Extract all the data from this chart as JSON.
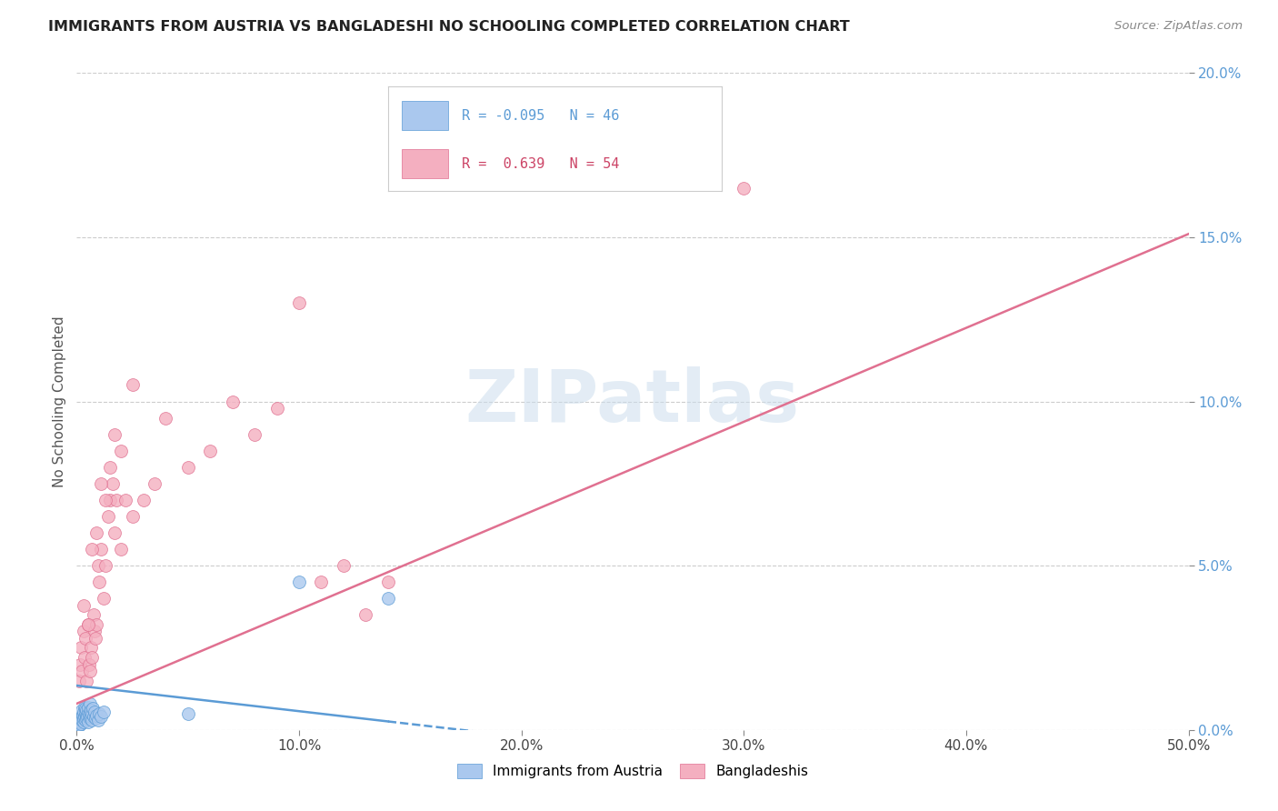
{
  "title": "IMMIGRANTS FROM AUSTRIA VS BANGLADESHI NO SCHOOLING COMPLETED CORRELATION CHART",
  "source": "Source: ZipAtlas.com",
  "ylabel": "No Schooling Completed",
  "legend_label_blue": "Immigrants from Austria",
  "legend_label_pink": "Bangladeshis",
  "R_blue": -0.095,
  "N_blue": 46,
  "R_pink": 0.639,
  "N_pink": 54,
  "xlim": [
    0,
    50
  ],
  "ylim": [
    0,
    20
  ],
  "xticks": [
    0,
    10,
    20,
    30,
    40,
    50
  ],
  "yticks": [
    0,
    5,
    10,
    15,
    20
  ],
  "xticklabels": [
    "0.0%",
    "10.0%",
    "20.0%",
    "30.0%",
    "40.0%",
    "50.0%"
  ],
  "yticklabels": [
    "0.0%",
    "5.0%",
    "10.0%",
    "15.0%",
    "20.0%"
  ],
  "blue_color": "#aac8ee",
  "blue_edge_color": "#5b9bd5",
  "pink_color": "#f4afc0",
  "pink_edge_color": "#e07090",
  "blue_trend_color": "#5b9bd5",
  "pink_trend_color": "#e07090",
  "watermark_color": "#ccdeed",
  "blue_x": [
    0.05,
    0.08,
    0.1,
    0.12,
    0.15,
    0.18,
    0.2,
    0.22,
    0.25,
    0.25,
    0.28,
    0.3,
    0.3,
    0.32,
    0.35,
    0.35,
    0.38,
    0.4,
    0.4,
    0.42,
    0.45,
    0.45,
    0.48,
    0.5,
    0.5,
    0.52,
    0.55,
    0.58,
    0.6,
    0.6,
    0.62,
    0.65,
    0.68,
    0.7,
    0.72,
    0.75,
    0.8,
    0.85,
    0.9,
    0.95,
    1.0,
    1.1,
    1.2,
    5.0,
    10.0,
    14.0
  ],
  "blue_y": [
    0.1,
    0.2,
    0.3,
    0.15,
    0.25,
    0.35,
    0.2,
    0.4,
    0.3,
    0.6,
    0.45,
    0.25,
    0.55,
    0.35,
    0.4,
    0.7,
    0.5,
    0.3,
    0.65,
    0.45,
    0.35,
    0.6,
    0.4,
    0.25,
    0.55,
    0.7,
    0.45,
    0.35,
    0.55,
    0.8,
    0.4,
    0.6,
    0.3,
    0.5,
    0.65,
    0.4,
    0.55,
    0.35,
    0.45,
    0.3,
    0.5,
    0.4,
    0.55,
    0.5,
    4.5,
    4.0
  ],
  "pink_x": [
    0.1,
    0.15,
    0.2,
    0.25,
    0.3,
    0.35,
    0.4,
    0.45,
    0.5,
    0.55,
    0.6,
    0.65,
    0.7,
    0.75,
    0.8,
    0.85,
    0.9,
    0.95,
    1.0,
    1.1,
    1.2,
    1.3,
    1.4,
    1.5,
    1.6,
    1.7,
    1.8,
    2.0,
    2.2,
    2.5,
    3.0,
    3.5,
    4.0,
    5.0,
    6.0,
    7.0,
    8.0,
    9.0,
    10.0,
    11.0,
    12.0,
    13.0,
    14.0,
    0.3,
    0.5,
    0.7,
    0.9,
    1.1,
    1.3,
    1.5,
    1.7,
    2.0,
    2.5,
    30.0
  ],
  "pink_y": [
    1.5,
    2.0,
    2.5,
    1.8,
    3.0,
    2.2,
    2.8,
    1.5,
    3.2,
    2.0,
    1.8,
    2.5,
    2.2,
    3.5,
    3.0,
    2.8,
    3.2,
    5.0,
    4.5,
    5.5,
    4.0,
    5.0,
    6.5,
    7.0,
    7.5,
    6.0,
    7.0,
    5.5,
    7.0,
    6.5,
    7.0,
    7.5,
    9.5,
    8.0,
    8.5,
    10.0,
    9.0,
    9.8,
    13.0,
    4.5,
    5.0,
    3.5,
    4.5,
    3.8,
    3.2,
    5.5,
    6.0,
    7.5,
    7.0,
    8.0,
    9.0,
    8.5,
    10.5,
    16.5
  ],
  "blue_line_intercept": 1.35,
  "blue_line_slope": -0.078,
  "blue_solid_end": 14.0,
  "pink_line_intercept": 0.8,
  "pink_line_slope": 0.286
}
